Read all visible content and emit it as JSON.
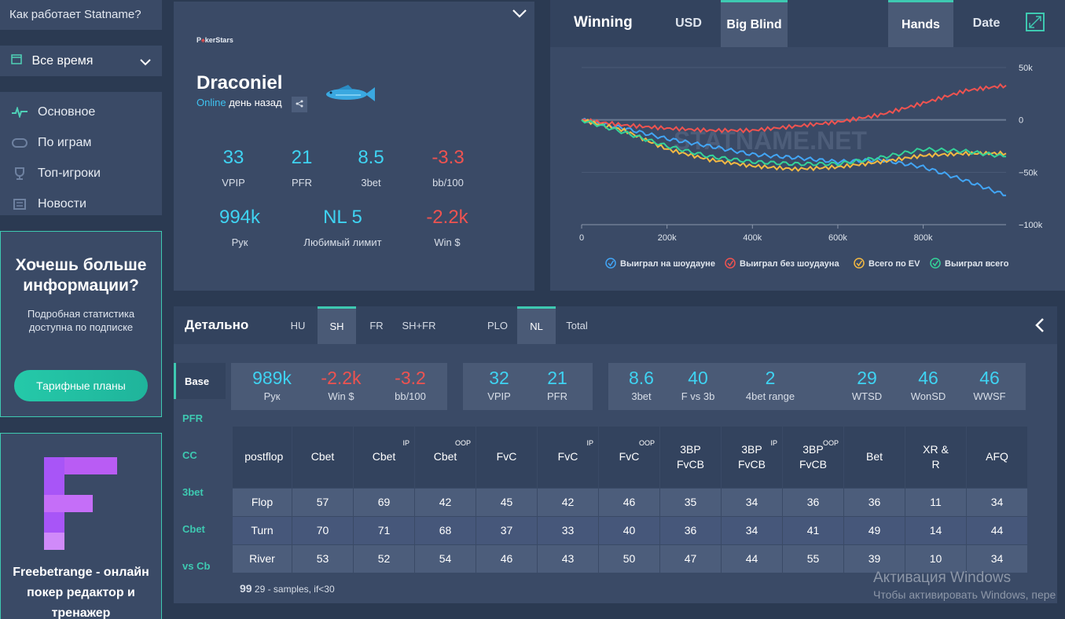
{
  "sidebar": {
    "how_it_works": "Как работает Statname?",
    "period": "Все время",
    "nav": [
      {
        "label": "Основное",
        "icon": "pulse-icon"
      },
      {
        "label": "По играм",
        "icon": "table-icon"
      },
      {
        "label": "Топ-игроки",
        "icon": "trophy-icon"
      },
      {
        "label": "Новости",
        "icon": "news-icon"
      }
    ],
    "promo": {
      "title": "Хочешь больше информации?",
      "text": "Подробная статистика доступна по подписке",
      "button": "Тарифные планы"
    },
    "freebet": {
      "text": "Freebetrange - онлайн покер редактор и тренажер"
    }
  },
  "profile": {
    "room_logo_a": "P",
    "room_logo_b": "♠",
    "room_logo_c": "kerStars",
    "name": "Draconiel",
    "online_label": "Online",
    "last_seen": "день назад",
    "stats": [
      {
        "value": "33",
        "label": "VPIP",
        "negative": false
      },
      {
        "value": "21",
        "label": "PFR",
        "negative": false
      },
      {
        "value": "8.5",
        "label": "3bet",
        "negative": false
      },
      {
        "value": "-3.3",
        "label": "bb/100",
        "negative": true
      },
      {
        "value": "994k",
        "label": "Рук",
        "negative": false
      },
      {
        "value": "NL 5",
        "label": "Любимый лимит",
        "negative": false
      },
      {
        "value": "-2.2k",
        "label": "Win $",
        "negative": true
      }
    ]
  },
  "chart": {
    "title": "Winning",
    "tabs": [
      "USD",
      "Big Blind",
      "Hands",
      "Date"
    ],
    "watermark": "STATNAME.NET"
  },
  "chart_data": {
    "type": "line",
    "xlabel": "Hands",
    "ylabel": "Big Blind",
    "xlim": [
      0,
      994000
    ],
    "ylim": [
      -100000,
      50000
    ],
    "x_ticks": [
      0,
      200000,
      400000,
      600000,
      800000
    ],
    "x_tick_labels": [
      "0",
      "200k",
      "400k",
      "600k",
      "800k"
    ],
    "y_ticks": [
      50000,
      0,
      -50000,
      -100000
    ],
    "y_tick_labels": [
      "50k",
      "0",
      "−50k",
      "−100k"
    ],
    "x": [
      0,
      100000,
      200000,
      300000,
      400000,
      500000,
      600000,
      700000,
      800000,
      900000,
      994000
    ],
    "series": [
      {
        "name": "Выиграл на шоудауне",
        "color": "#42a5f5",
        "values": [
          0,
          -8000,
          -18000,
          -25000,
          -33000,
          -36000,
          -40000,
          -38000,
          -45000,
          -58000,
          -72000
        ]
      },
      {
        "name": "Выиграл без шоудауна",
        "color": "#ef5350",
        "values": [
          0,
          -5000,
          -8000,
          -10000,
          -10000,
          -6000,
          -2000,
          5000,
          16000,
          28000,
          33000
        ]
      },
      {
        "name": "Всего по EV",
        "color": "#f4b942",
        "values": [
          0,
          -10000,
          -28000,
          -38000,
          -44000,
          -47000,
          -45000,
          -40000,
          -34000,
          -32000,
          -32000
        ]
      },
      {
        "name": "Выиграл всего",
        "color": "#34d399",
        "values": [
          0,
          -12000,
          -25000,
          -35000,
          -40000,
          -42000,
          -42000,
          -36000,
          -28000,
          -30000,
          -35000
        ]
      }
    ]
  },
  "details": {
    "title": "Детально",
    "tabs": [
      "HU",
      "SH",
      "FR",
      "SH+FR",
      "PLO",
      "NL",
      "Total"
    ],
    "side_tabs": [
      "Base",
      "PFR",
      "CC",
      "3bet",
      "Cbet",
      "vs Cb"
    ],
    "summary_boxes": [
      [
        {
          "value": "989k",
          "label": "Рук",
          "negative": false
        },
        {
          "value": "-2.2k",
          "label": "Win $",
          "negative": true
        },
        {
          "value": "-3.2",
          "label": "bb/100",
          "negative": true
        }
      ],
      [
        {
          "value": "32",
          "label": "VPIP",
          "negative": false
        },
        {
          "value": "21",
          "label": "PFR",
          "negative": false
        }
      ],
      [
        {
          "value": "8.6",
          "label": "3bet",
          "negative": false
        },
        {
          "value": "40",
          "label": "F vs 3b",
          "negative": false
        },
        {
          "value": "2",
          "label": "4bet range",
          "negative": false
        }
      ],
      [
        {
          "value": "29",
          "label": "WTSD",
          "negative": false
        },
        {
          "value": "46",
          "label": "WonSD",
          "negative": false
        },
        {
          "value": "46",
          "label": "WWSF",
          "negative": false
        }
      ]
    ],
    "table": {
      "headers": [
        {
          "label": "postflop",
          "sup": ""
        },
        {
          "label": "Cbet",
          "sup": ""
        },
        {
          "label": "Cbet",
          "sup": "IP"
        },
        {
          "label": "Cbet",
          "sup": "OOP"
        },
        {
          "label": "FvC",
          "sup": ""
        },
        {
          "label": "FvC",
          "sup": "IP"
        },
        {
          "label": "FvC",
          "sup": "OOP"
        },
        {
          "label": "3BP FvCB",
          "sup": ""
        },
        {
          "label": "3BP FvCB",
          "sup": "IP"
        },
        {
          "label": "3BP FvCB",
          "sup": "OOP"
        },
        {
          "label": "Bet",
          "sup": ""
        },
        {
          "label": "XR & R",
          "sup": ""
        },
        {
          "label": "AFQ",
          "sup": ""
        }
      ],
      "rows": [
        [
          "Flop",
          "57",
          "69",
          "42",
          "45",
          "42",
          "46",
          "35",
          "34",
          "36",
          "36",
          "11",
          "34"
        ],
        [
          "Turn",
          "70",
          "71",
          "68",
          "37",
          "33",
          "40",
          "36",
          "34",
          "41",
          "49",
          "14",
          "44"
        ],
        [
          "River",
          "53",
          "52",
          "54",
          "46",
          "43",
          "50",
          "47",
          "44",
          "55",
          "39",
          "10",
          "34"
        ]
      ]
    },
    "footnote_mark": "99",
    "footnote": "29 - samples, if<30"
  },
  "windows": {
    "activation_title": "Активация Windows",
    "activation_text": "Чтобы активировать Windows, пере"
  }
}
